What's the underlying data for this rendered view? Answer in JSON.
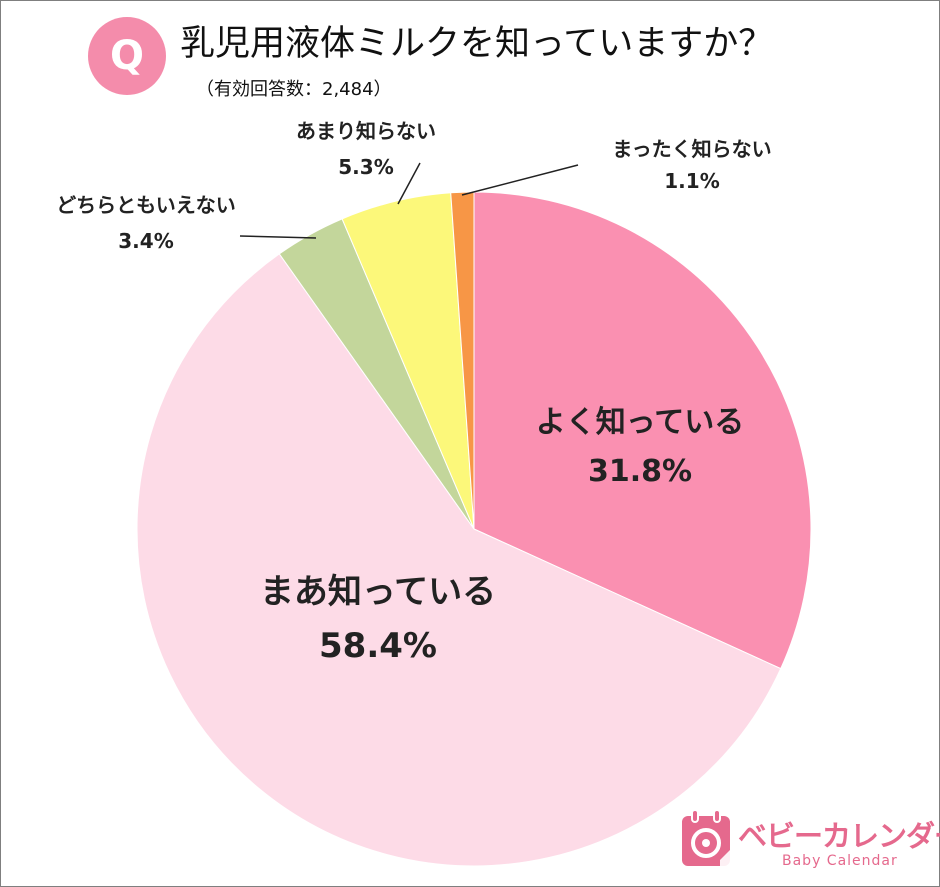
{
  "header": {
    "badge": "Q",
    "title": "乳児用液体ミルクを知っていますか？",
    "subtitle": "（有効回答数：2,484）"
  },
  "chart_data": {
    "type": "pie",
    "title": "乳児用液体ミルクを知っていますか？",
    "start": "12 o'clock",
    "direction": "clockwise",
    "slices": [
      {
        "label": "よく知っている",
        "value": 31.8,
        "value_label": "31.8%",
        "color": "#fa90b1",
        "label_position": "inside"
      },
      {
        "label": "まあ知っている",
        "value": 58.4,
        "value_label": "58.4%",
        "color": "#fddbe7",
        "label_position": "inside"
      },
      {
        "label": "どちらともいえない",
        "value": 3.4,
        "value_label": "3.4%",
        "color": "#c3d69b",
        "label_position": "outside"
      },
      {
        "label": "あまり知らない",
        "value": 5.3,
        "value_label": "5.3%",
        "color": "#fcf87a",
        "label_position": "outside"
      },
      {
        "label": "まったく知らない",
        "value": 1.1,
        "value_label": "1.1%",
        "color": "#f79646",
        "label_position": "outside"
      }
    ]
  },
  "brand": {
    "name": "ベビーカレンダー",
    "sub": "Baby Calendar",
    "color": "#e5698d",
    "icon": "calendar-icon"
  }
}
